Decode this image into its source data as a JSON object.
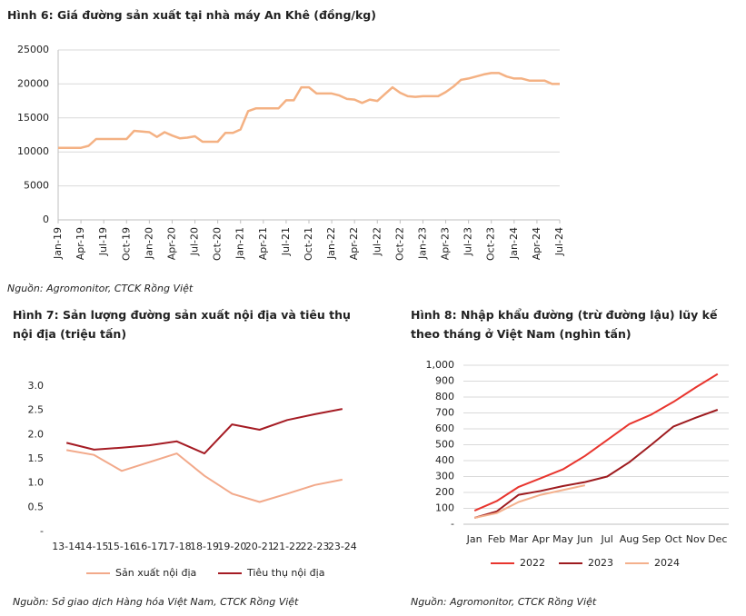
{
  "chart_data": [
    {
      "type": "line",
      "title": "Hình 6: Giá đường sản xuất tại nhà máy An Khê (đồng/kg)",
      "source": "Nguồn: Agromonitor, CTCK Rồng Việt",
      "categories": [
        "Jan-19",
        null,
        null,
        "Apr-19",
        null,
        null,
        "Jul-19",
        null,
        null,
        "Oct-19",
        null,
        null,
        "Jan-20",
        null,
        null,
        "Apr-20",
        null,
        null,
        "Jul-20",
        null,
        null,
        "Oct-20",
        null,
        null,
        "Jan-21",
        null,
        null,
        "Apr-21",
        null,
        null,
        "Jul-21",
        null,
        null,
        "Oct-21",
        null,
        null,
        "Jan-22",
        null,
        null,
        "Apr-22",
        null,
        null,
        "Jul-22",
        null,
        null,
        "Oct-22",
        null,
        null,
        "Jan-23",
        null,
        null,
        "Apr-23",
        null,
        null,
        "Jul-23",
        null,
        null,
        "Oct-23",
        null,
        null,
        "Jan-24",
        null,
        null,
        "Apr-24",
        null,
        null,
        "Jul-24"
      ],
      "values": [
        10600,
        10600,
        10600,
        10600,
        10900,
        11900,
        11900,
        11900,
        11900,
        11900,
        13100,
        13000,
        12900,
        12200,
        12900,
        12400,
        12000,
        12100,
        12300,
        11500,
        11500,
        11500,
        12800,
        12800,
        13300,
        16000,
        16400,
        16400,
        16400,
        16400,
        17600,
        17600,
        19500,
        19500,
        18600,
        18600,
        18600,
        18300,
        17800,
        17700,
        17200,
        17700,
        17500,
        18500,
        19500,
        18700,
        18200,
        18100,
        18200,
        18200,
        18200,
        18800,
        19600,
        20600,
        20800,
        21100,
        21400,
        21600,
        21600,
        21100,
        20800,
        20800,
        20500,
        20500,
        20500,
        20000,
        20000
      ],
      "color": "#f4b183",
      "ylim": [
        0,
        25000
      ],
      "yticks": [
        0,
        5000,
        10000,
        15000,
        20000,
        25000
      ],
      "grid": true
    },
    {
      "type": "line",
      "title": "Hình 7: Sản lượng đường sản xuất nội địa và tiêu thụ nội địa (triệu tấn)",
      "source": "Nguồn: Sở giao dịch Hàng hóa Việt Nam, CTCK Rồng Việt",
      "categories": [
        "13-14",
        "14-15",
        "15-16",
        "16-17",
        "17-18",
        "18-19",
        "19-20",
        "20-21",
        "21-22",
        "22-23",
        "23-24"
      ],
      "series": [
        {
          "name": "Sản xuất nội địa",
          "color": "#f2a98a",
          "values": [
            1.68,
            1.58,
            1.25,
            1.43,
            1.61,
            1.15,
            0.78,
            0.61,
            0.78,
            0.96,
            1.07
          ]
        },
        {
          "name": "Tiêu thụ nội địa",
          "color": "#a51c24",
          "values": [
            1.83,
            1.69,
            1.73,
            1.78,
            1.86,
            1.61,
            2.21,
            2.1,
            2.3,
            2.42,
            2.53
          ]
        }
      ],
      "ylim": [
        0,
        3
      ],
      "yticks": [
        {
          "value": 0,
          "label": "-"
        },
        0.5,
        {
          "value": 1,
          "label": "1.0"
        },
        1.5,
        {
          "value": 2,
          "label": "2.0"
        },
        2.5,
        {
          "value": 3,
          "label": "3.0"
        }
      ],
      "grid": false
    },
    {
      "type": "line",
      "title": "Hình 8: Nhập khẩu đường (trừ đường lậu) lũy kế theo tháng ở Việt Nam (nghìn tấn)",
      "source": "Nguồn: Agromonitor, CTCK Rồng Việt",
      "categories": [
        "Jan",
        "Feb",
        "Mar",
        "Apr",
        "May",
        "Jun",
        "Jul",
        "Aug",
        "Sep",
        "Oct",
        "Nov",
        "Dec"
      ],
      "series": [
        {
          "name": "2022",
          "color": "#e8352e",
          "values": [
            85,
            145,
            235,
            290,
            345,
            430,
            530,
            630,
            690,
            770,
            860,
            945
          ]
        },
        {
          "name": "2023",
          "color": "#9e1b1f",
          "values": [
            40,
            80,
            185,
            210,
            240,
            265,
            300,
            390,
            500,
            615,
            670,
            720
          ]
        },
        {
          "name": "2024",
          "color": "#f4b08c",
          "values": [
            40,
            70,
            140,
            185,
            215,
            245,
            null,
            null,
            null,
            null,
            null,
            null
          ]
        }
      ],
      "ylim": [
        0,
        1000
      ],
      "yticks": [
        {
          "value": 0,
          "label": "-"
        },
        100,
        200,
        300,
        400,
        500,
        600,
        700,
        800,
        900,
        {
          "value": 1000,
          "label": "1,000"
        }
      ],
      "grid": true
    }
  ]
}
